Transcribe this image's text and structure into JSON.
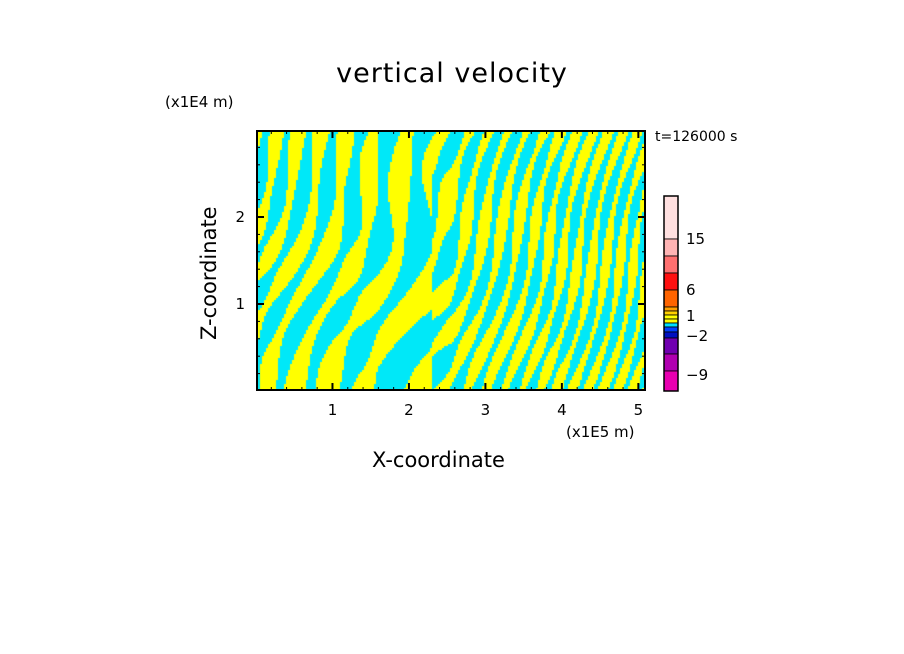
{
  "chart_data": {
    "type": "heatmap",
    "title": "vertical velocity",
    "xlabel": "X-coordinate",
    "ylabel": "Z-coordinate",
    "x_unit": "(x1E5 m)",
    "z_unit": "(x1E4 m)",
    "time_label": "t=126000 s",
    "xlim": [
      0,
      5.1
    ],
    "ylim": [
      0,
      3
    ],
    "xticks": [
      "1",
      "2",
      "3",
      "4",
      "5"
    ],
    "xtick_values": [
      1,
      2,
      3,
      4,
      5
    ],
    "yticks": [
      "1",
      "2"
    ],
    "ytick_values": [
      1,
      2
    ],
    "field_colors": [
      "#ffff00",
      "#00e8f8"
    ],
    "colorbar": {
      "levels_top_to_bottom": [
        {
          "color": "#ffe0e0",
          "w": 43
        },
        {
          "color": "#ffb4b4",
          "w": 17
        },
        {
          "color": "#ff7070",
          "w": 17
        },
        {
          "color": "#ff1010",
          "w": 17
        },
        {
          "color": "#ff6400",
          "w": 17
        },
        {
          "color": "#ffa000",
          "w": 4
        },
        {
          "color": "#ffd000",
          "w": 4
        },
        {
          "color": "#ffff00",
          "w": 4
        },
        {
          "color": "#ffff00",
          "w": 4
        },
        {
          "color": "#00e0ff",
          "w": 4
        },
        {
          "color": "#0040ff",
          "w": 5
        },
        {
          "color": "#0010c0",
          "w": 6
        },
        {
          "color": "#7000b0",
          "w": 16
        },
        {
          "color": "#b000b0",
          "w": 17
        },
        {
          "color": "#e800b0",
          "w": 20
        }
      ],
      "labels": [
        "15",
        "6",
        "1",
        "−2",
        "−9"
      ]
    }
  }
}
